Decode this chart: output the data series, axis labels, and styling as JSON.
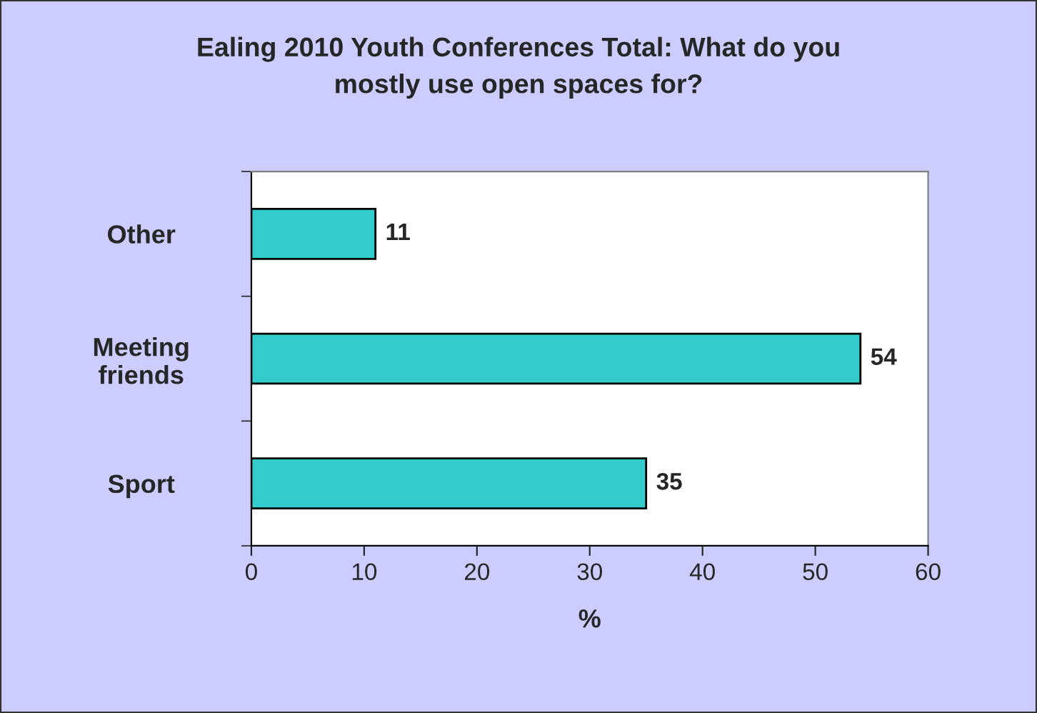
{
  "chart_data": {
    "type": "bar",
    "orientation": "horizontal",
    "title": "Ealing 2010 Youth Conferences Total: What do you\nmostly use open spaces for?",
    "xlabel": "%",
    "categories": [
      "Other",
      "Meeting\nfriends",
      "Sport"
    ],
    "values": [
      11,
      54,
      35
    ],
    "color": "#33cccc",
    "xlim": [
      0,
      60
    ],
    "xticks": [
      0,
      10,
      20,
      30,
      40,
      50,
      60
    ],
    "data_labels": true,
    "grid": false,
    "legend": false
  }
}
